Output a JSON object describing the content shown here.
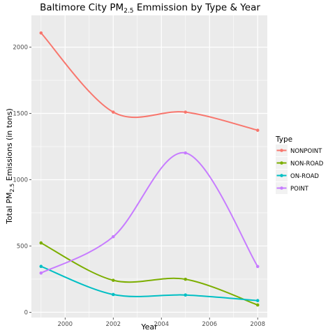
{
  "chart_data": {
    "type": "line",
    "title": {
      "prefix": "Baltimore City PM",
      "sub": "2.5",
      "suffix": " Emmission by Type & Year"
    },
    "xlabel": "Year",
    "ylabel": {
      "prefix": "Total PM",
      "sub": "2.5",
      "suffix": " Emissions (in tons)"
    },
    "x": [
      1999,
      2002,
      2005,
      2008
    ],
    "xlim": [
      1998.6,
      2008.4
    ],
    "ylim": [
      -40,
      2240
    ],
    "xticks": [
      2000,
      2002,
      2004,
      2006,
      2008
    ],
    "yticks": [
      0,
      500,
      1000,
      1500,
      2000
    ],
    "grid": true,
    "background": "#ebebeb",
    "legend": {
      "title": "Type",
      "position": "right"
    },
    "series": [
      {
        "name": "NONPOINT",
        "color": "#f8766d",
        "values": [
          2107,
          1510,
          1510,
          1373
        ]
      },
      {
        "name": "NON-ROAD",
        "color": "#7cae00",
        "values": [
          523,
          241,
          249,
          55
        ]
      },
      {
        "name": "ON-ROAD",
        "color": "#00bfc4",
        "values": [
          346,
          134,
          130,
          88
        ]
      },
      {
        "name": "POINT",
        "color": "#c77cff",
        "values": [
          296,
          570,
          1202,
          345
        ]
      }
    ]
  }
}
